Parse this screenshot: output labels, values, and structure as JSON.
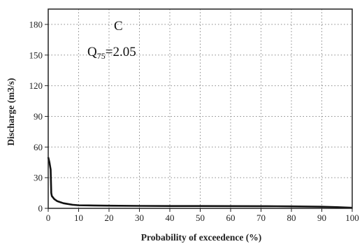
{
  "chart_data": {
    "type": "line",
    "title": "",
    "xlabel": "Probability of exceedence (%)",
    "ylabel": "Discharge (m3/s)",
    "xlim": [
      0,
      100
    ],
    "ylim": [
      0,
      195
    ],
    "xticks": [
      0,
      10,
      20,
      30,
      40,
      50,
      60,
      70,
      80,
      90,
      100
    ],
    "yticks": [
      0,
      30,
      60,
      90,
      120,
      150,
      180
    ],
    "grid": true,
    "annotations": {
      "panel_label": "C",
      "q_prefix": "Q",
      "q_subscript": "75",
      "q_value": "=2.05"
    },
    "series": [
      {
        "x": [
          0,
          0.4,
          0.8,
          1.0,
          1.2,
          2,
          3,
          4,
          5,
          6,
          8,
          10,
          15,
          20,
          30,
          40,
          50,
          60,
          70,
          75,
          80,
          90,
          95,
          100
        ],
        "y": [
          50,
          45,
          38,
          15,
          12,
          9,
          7,
          6,
          5,
          4.5,
          3.5,
          3,
          2.8,
          2.6,
          2.4,
          2.3,
          2.25,
          2.2,
          2.1,
          2.05,
          1.9,
          1.6,
          1.2,
          0.6
        ]
      }
    ]
  }
}
